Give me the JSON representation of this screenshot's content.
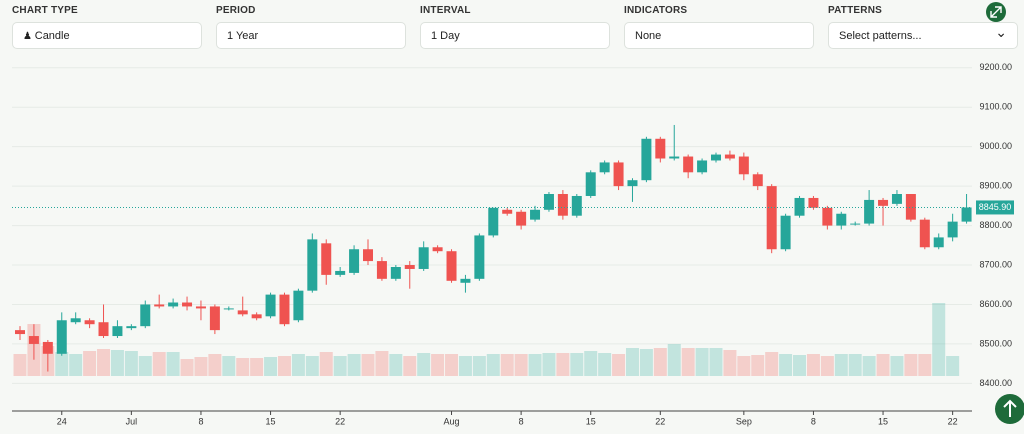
{
  "controls": [
    {
      "label": "CHART TYPE",
      "value": "Candle"
    },
    {
      "label": "PERIOD",
      "value": "1 Year"
    },
    {
      "label": "INTERVAL",
      "value": "1 Day"
    },
    {
      "label": "INDICATORS",
      "value": "None"
    },
    {
      "label": "PATTERNS",
      "value": "Select patterns..."
    }
  ],
  "chart_data": {
    "type": "candlestick",
    "categories": [
      null,
      null,
      null,
      "24",
      null,
      null,
      null,
      null,
      "Jul",
      null,
      null,
      null,
      null,
      "8",
      null,
      null,
      null,
      null,
      "15",
      null,
      null,
      null,
      null,
      "22",
      null,
      null,
      null,
      null,
      null,
      null,
      null,
      "Aug",
      null,
      null,
      null,
      null,
      "8",
      null,
      null,
      null,
      null,
      "15",
      null,
      null,
      null,
      null,
      "22",
      null,
      null,
      null,
      null,
      null,
      "Sep",
      null,
      null,
      null,
      null,
      "8",
      null,
      null,
      null,
      null,
      "15",
      null,
      null,
      null,
      null,
      "22",
      null
    ],
    "open": [
      8535,
      8520,
      8505,
      8475,
      8555,
      8560,
      8555,
      8520,
      8540,
      8545,
      8600,
      8595,
      8605,
      8595,
      8595,
      8590,
      8585,
      8575,
      8570,
      8625,
      8560,
      8635,
      8755,
      8675,
      8680,
      8740,
      8710,
      8665,
      8700,
      8690,
      8745,
      8735,
      8655,
      8665,
      8775,
      8840,
      8835,
      8815,
      8840,
      8880,
      8825,
      8875,
      8935,
      8960,
      8900,
      8915,
      9020,
      8970,
      8975,
      8935,
      8965,
      8980,
      8975,
      8930,
      8900,
      8740,
      8825,
      8870,
      8845,
      8800,
      8805,
      8805,
      8865,
      8855,
      8880,
      8815,
      8745,
      8770,
      8810
    ],
    "high": [
      8545,
      8550,
      8510,
      8580,
      8580,
      8565,
      8600,
      8560,
      8550,
      8610,
      8625,
      8615,
      8620,
      8610,
      8600,
      8595,
      8620,
      8580,
      8630,
      8630,
      8640,
      8780,
      8765,
      8695,
      8750,
      8765,
      8720,
      8700,
      8710,
      8760,
      8750,
      8740,
      8675,
      8780,
      8845,
      8845,
      8840,
      8850,
      8885,
      8890,
      8880,
      8940,
      8965,
      8965,
      8920,
      9025,
      9025,
      9055,
      8980,
      8970,
      8985,
      8990,
      8985,
      8935,
      8905,
      8830,
      8875,
      8875,
      8850,
      8835,
      8810,
      8890,
      8870,
      8890,
      8880,
      8820,
      8780,
      8830,
      8880
    ],
    "low": [
      8510,
      8460,
      8430,
      8470,
      8550,
      8540,
      8515,
      8515,
      8535,
      8540,
      8590,
      8590,
      8585,
      8560,
      8525,
      8585,
      8570,
      8560,
      8565,
      8545,
      8555,
      8630,
      8650,
      8670,
      8675,
      8700,
      8660,
      8660,
      8640,
      8685,
      8730,
      8655,
      8630,
      8660,
      8770,
      8825,
      8790,
      8810,
      8835,
      8815,
      8820,
      8870,
      8930,
      8890,
      8860,
      8910,
      8960,
      8965,
      8920,
      8930,
      8960,
      8965,
      8915,
      8890,
      8730,
      8735,
      8820,
      8840,
      8790,
      8790,
      8800,
      8800,
      8800,
      8850,
      8810,
      8740,
      8740,
      8760,
      8805
    ],
    "close": [
      8525,
      8500,
      8475,
      8560,
      8565,
      8550,
      8520,
      8545,
      8545,
      8600,
      8595,
      8605,
      8595,
      8590,
      8535,
      8590,
      8575,
      8565,
      8625,
      8550,
      8635,
      8765,
      8675,
      8685,
      8740,
      8710,
      8665,
      8695,
      8690,
      8745,
      8735,
      8660,
      8665,
      8775,
      8845,
      8830,
      8800,
      8840,
      8880,
      8825,
      8875,
      8935,
      8960,
      8900,
      8915,
      9020,
      8970,
      8975,
      8935,
      8965,
      8980,
      8970,
      8930,
      8900,
      8740,
      8825,
      8870,
      8845,
      8800,
      8830,
      8805,
      8865,
      8850,
      8880,
      8815,
      8745,
      8770,
      8810,
      8845.9
    ],
    "volume": [
      22,
      52,
      30,
      24,
      22,
      25,
      27,
      26,
      25,
      20,
      24,
      24,
      17,
      19,
      22,
      20,
      18,
      18,
      19,
      20,
      22,
      20,
      24,
      20,
      22,
      22,
      25,
      22,
      20,
      23,
      22,
      22,
      20,
      20,
      22,
      22,
      22,
      22,
      23,
      23,
      23,
      25,
      23,
      22,
      28,
      27,
      28,
      32,
      28,
      28,
      28,
      26,
      20,
      21,
      24,
      22,
      21,
      22,
      20,
      22,
      22,
      20,
      22,
      20,
      22,
      22,
      73,
      20,
      null
    ],
    "up_color": "#26a69a",
    "down_color": "#ef5350",
    "ylim": [
      8330,
      9245
    ],
    "yticks": [
      {
        "value": 8400,
        "label": "8400.00"
      },
      {
        "value": 8500,
        "label": "8500.00"
      },
      {
        "value": 8600,
        "label": "8600.00"
      },
      {
        "value": 8700,
        "label": "8700.00"
      },
      {
        "value": 8800,
        "label": "8800.00"
      },
      {
        "value": 8900,
        "label": "8900.00"
      },
      {
        "value": 9000,
        "label": "9000.00"
      },
      {
        "value": 9100,
        "label": "9100.00"
      },
      {
        "value": 9200,
        "label": "9200.00"
      }
    ],
    "last_price": {
      "value": 8845.9,
      "label": "8845.90"
    },
    "grid": true
  }
}
